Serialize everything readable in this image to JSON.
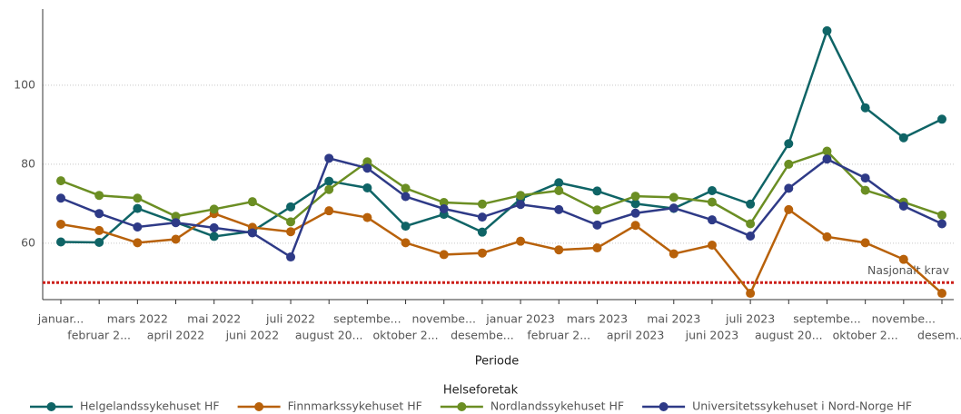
{
  "chart_data": {
    "type": "line",
    "x_label": "Periode",
    "legend_title": "Helseforetak",
    "categories": [
      "januar...",
      "februar 2...",
      "mars 2022",
      "april 2022",
      "mai 2022",
      "juni 2022",
      "juli 2022",
      "august 20...",
      "septembe...",
      "oktober 2...",
      "novembe...",
      "desembe...",
      "januar 2023",
      "februar 2...",
      "mars 2023",
      "april 2023",
      "mai 2023",
      "juni 2023",
      "juli 2023",
      "august 20...",
      "septembe...",
      "oktober 2...",
      "novembe...",
      "desem..."
    ],
    "series": [
      {
        "name": "Helgelandssykehuset HF",
        "color": "#0f6466",
        "values": [
          60.3,
          60.2,
          68.8,
          65.3,
          61.7,
          63.0,
          69.2,
          75.7,
          74.0,
          64.3,
          67.3,
          62.8,
          71.2,
          75.3,
          73.2,
          70.0,
          68.8,
          73.3,
          69.9,
          85.2,
          113.8,
          94.3,
          86.7,
          91.4
        ]
      },
      {
        "name": "Finnmarkssykehuset HF",
        "color": "#b8610a",
        "values": [
          64.8,
          63.2,
          60.1,
          61.0,
          67.5,
          64.0,
          62.9,
          68.2,
          66.5,
          60.1,
          57.1,
          57.5,
          60.5,
          58.3,
          58.8,
          64.5,
          57.3,
          59.5,
          47.3,
          68.5,
          61.6,
          60.1,
          55.9,
          47.3
        ]
      },
      {
        "name": "Nordlandssykehuset HF",
        "color": "#6b8e23",
        "values": [
          75.8,
          72.1,
          71.4,
          66.8,
          68.6,
          70.5,
          65.4,
          73.6,
          80.6,
          73.9,
          70.3,
          69.9,
          72.1,
          73.3,
          68.4,
          71.9,
          71.6,
          70.4,
          64.9,
          80.0,
          83.3,
          73.4,
          70.4,
          67.1
        ]
      },
      {
        "name": "Universitetssykehuset i Nord-Norge HF",
        "color": "#2e3a87",
        "values": [
          71.4,
          67.5,
          64.1,
          65.2,
          63.9,
          62.6,
          56.5,
          81.5,
          79.0,
          71.8,
          68.7,
          66.6,
          69.8,
          68.5,
          64.6,
          67.6,
          68.9,
          65.9,
          61.8,
          73.9,
          81.3,
          76.5,
          69.4,
          64.9
        ]
      }
    ],
    "reference_line": {
      "value": 50,
      "label": "Nasjonalt krav",
      "color": "#cc1f1a"
    },
    "ylim": [
      45.7,
      119.3
    ],
    "yticks": [
      60,
      80,
      100
    ],
    "grid": true
  }
}
